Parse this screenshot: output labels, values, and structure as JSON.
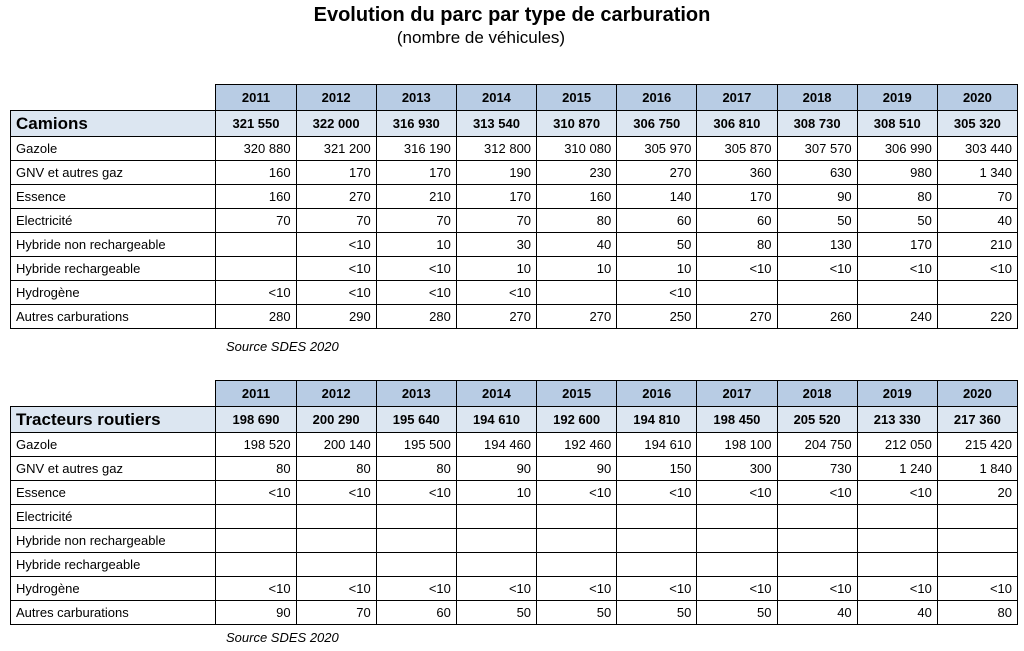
{
  "title": "Evolution du parc par type de carburation",
  "subtitle": "(nombre de véhicules)",
  "years": [
    "2011",
    "2012",
    "2013",
    "2014",
    "2015",
    "2016",
    "2017",
    "2018",
    "2019",
    "2020"
  ],
  "tables": [
    {
      "name": "Camions",
      "totals": [
        "321 550",
        "322 000",
        "316 930",
        "313 540",
        "310 870",
        "306 750",
        "306 810",
        "308 730",
        "308 510",
        "305 320"
      ],
      "rows": [
        {
          "label": "Gazole",
          "values": [
            "320 880",
            "321 200",
            "316 190",
            "312 800",
            "310 080",
            "305 970",
            "305 870",
            "307 570",
            "306 990",
            "303 440"
          ]
        },
        {
          "label": "GNV et autres gaz",
          "values": [
            "160",
            "170",
            "170",
            "190",
            "230",
            "270",
            "360",
            "630",
            "980",
            "1 340"
          ]
        },
        {
          "label": "Essence",
          "values": [
            "160",
            "270",
            "210",
            "170",
            "160",
            "140",
            "170",
            "90",
            "80",
            "70"
          ]
        },
        {
          "label": "Electricité",
          "values": [
            "70",
            "70",
            "70",
            "70",
            "80",
            "60",
            "60",
            "50",
            "50",
            "40"
          ]
        },
        {
          "label": "Hybride non rechargeable",
          "values": [
            "",
            "<10",
            "10",
            "30",
            "40",
            "50",
            "80",
            "130",
            "170",
            "210"
          ]
        },
        {
          "label": "Hybride rechargeable",
          "values": [
            "",
            "<10",
            "<10",
            "10",
            "10",
            "10",
            "<10",
            "<10",
            "<10",
            "<10"
          ]
        },
        {
          "label": "Hydrogène",
          "values": [
            "<10",
            "<10",
            "<10",
            "<10",
            "",
            "<10",
            "",
            "",
            "",
            ""
          ]
        },
        {
          "label": "Autres carburations",
          "values": [
            "280",
            "290",
            "280",
            "270",
            "270",
            "250",
            "270",
            "260",
            "240",
            "220"
          ]
        }
      ],
      "source": "Source SDES 2020"
    },
    {
      "name": "Tracteurs routiers",
      "totals": [
        "198 690",
        "200 290",
        "195 640",
        "194 610",
        "192 600",
        "194 810",
        "198 450",
        "205 520",
        "213 330",
        "217 360"
      ],
      "rows": [
        {
          "label": "Gazole",
          "values": [
            "198 520",
            "200 140",
            "195 500",
            "194 460",
            "192 460",
            "194 610",
            "198 100",
            "204 750",
            "212 050",
            "215 420"
          ]
        },
        {
          "label": "GNV et autres gaz",
          "values": [
            "80",
            "80",
            "80",
            "90",
            "90",
            "150",
            "300",
            "730",
            "1 240",
            "1 840"
          ]
        },
        {
          "label": "Essence",
          "values": [
            "<10",
            "<10",
            "<10",
            "10",
            "<10",
            "<10",
            "<10",
            "<10",
            "<10",
            "20"
          ]
        },
        {
          "label": "Electricité",
          "values": [
            "",
            "",
            "",
            "",
            "",
            "",
            "",
            "",
            "",
            ""
          ]
        },
        {
          "label": "Hybride non rechargeable",
          "values": [
            "",
            "",
            "",
            "",
            "",
            "",
            "",
            "",
            "",
            ""
          ]
        },
        {
          "label": "Hybride rechargeable",
          "values": [
            "",
            "",
            "",
            "",
            "",
            "",
            "",
            "",
            "",
            ""
          ]
        },
        {
          "label": "Hydrogène",
          "values": [
            "<10",
            "<10",
            "<10",
            "<10",
            "<10",
            "<10",
            "<10",
            "<10",
            "<10",
            "<10"
          ]
        },
        {
          "label": "Autres carburations",
          "values": [
            "90",
            "70",
            "60",
            "50",
            "50",
            "50",
            "50",
            "40",
            "40",
            "80"
          ]
        }
      ],
      "source": "Source SDES 2020"
    }
  ]
}
